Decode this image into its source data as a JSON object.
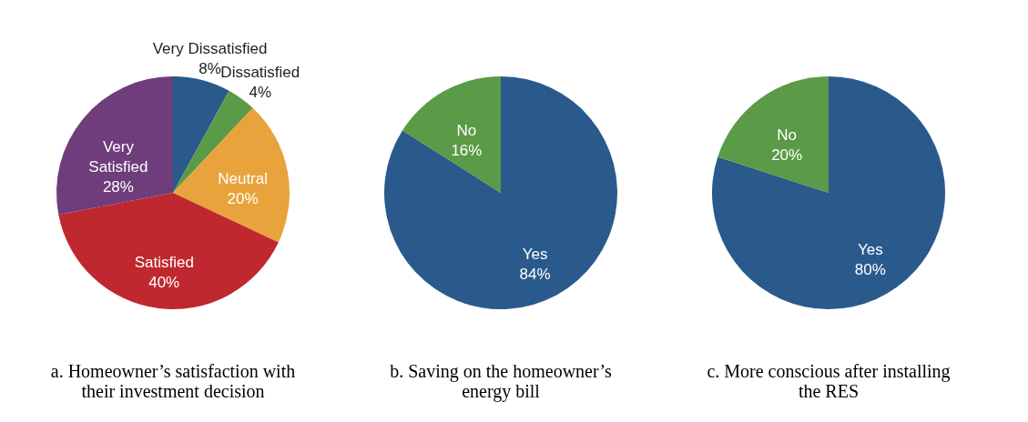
{
  "chart_data": [
    {
      "type": "pie",
      "title": "a. Homeowner’s satisfaction with their investment decision",
      "categories": [
        "Very Dissatisfied",
        "Dissatisfied",
        "Neutral",
        "Satisfied",
        "Very Satisfied"
      ],
      "values": [
        8,
        4,
        20,
        40,
        28
      ],
      "value_labels": [
        "8%",
        "4%",
        "20%",
        "40%",
        "28%"
      ],
      "colors": [
        "#2a5a8c",
        "#5b9a46",
        "#e8a33c",
        "#c0282f",
        "#6f3c7c"
      ],
      "legend": false
    },
    {
      "type": "pie",
      "title": "b. Saving on the homeowner’s energy bill",
      "categories": [
        "Yes",
        "No"
      ],
      "values": [
        84,
        16
      ],
      "value_labels": [
        "84%",
        "16%"
      ],
      "colors": [
        "#2a5a8c",
        "#5b9a46"
      ],
      "legend": false
    },
    {
      "type": "pie",
      "title": "c. More conscious after installing the RES",
      "categories": [
        "Yes",
        "No"
      ],
      "values": [
        80,
        20
      ],
      "value_labels": [
        "80%",
        "20%"
      ],
      "colors": [
        "#2a5a8c",
        "#5b9a46"
      ],
      "legend": false
    }
  ]
}
